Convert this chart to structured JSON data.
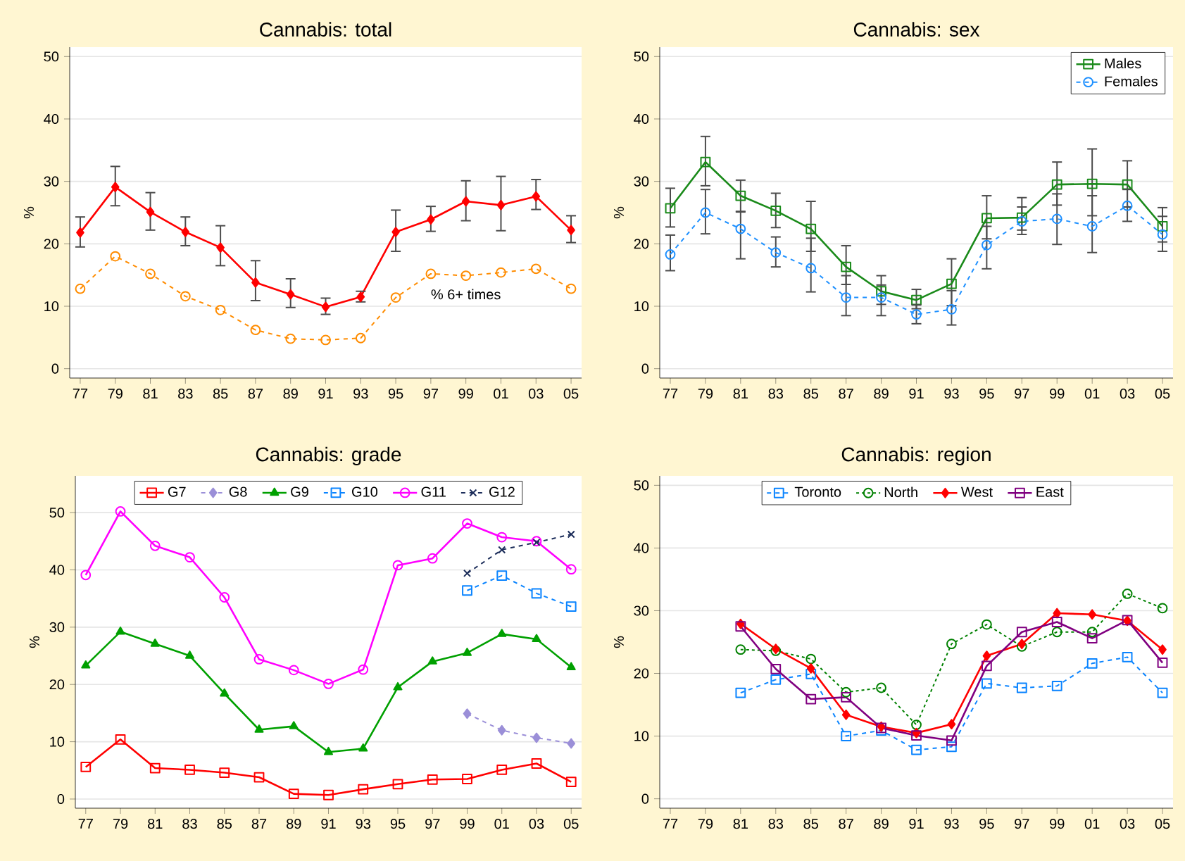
{
  "chart_data": [
    {
      "type": "line",
      "title": "Cannabis: total",
      "ylabel": "%",
      "categories": [
        "77",
        "79",
        "81",
        "83",
        "85",
        "87",
        "89",
        "91",
        "93",
        "95",
        "97",
        "99",
        "01",
        "03",
        "05"
      ],
      "ylim": [
        -1.5,
        51.5
      ],
      "yticks": [
        0,
        10,
        20,
        30,
        40,
        50
      ],
      "grid": "y",
      "legend": false,
      "series": [
        {
          "color": "#ff0000",
          "marker": "diamond",
          "line_style": "solid",
          "values": [
            21.8,
            29.1,
            25.1,
            21.9,
            19.4,
            13.8,
            11.9,
            9.9,
            11.5,
            21.9,
            23.9,
            26.8,
            26.2,
            27.6,
            22.2
          ],
          "errors": [
            [
              19.5,
              24.3
            ],
            [
              26.1,
              32.4
            ],
            [
              22.2,
              28.2
            ],
            [
              19.7,
              24.3
            ],
            [
              16.5,
              22.9
            ],
            [
              10.9,
              17.3
            ],
            [
              9.8,
              14.4
            ],
            [
              8.7,
              11.3
            ],
            [
              10.7,
              12.4
            ],
            [
              18.8,
              25.4
            ],
            [
              22.0,
              26.0
            ],
            [
              23.7,
              30.1
            ],
            [
              22.1,
              30.8
            ],
            [
              25.5,
              30.3
            ],
            [
              20.2,
              24.5
            ]
          ]
        },
        {
          "name": "% 6+ times",
          "color": "#ff8c00",
          "marker": "circle",
          "line_style": "dashed",
          "values": [
            12.8,
            18.0,
            15.2,
            11.6,
            9.4,
            6.2,
            4.8,
            4.6,
            4.9,
            11.4,
            15.2,
            14.9,
            15.4,
            16.0,
            12.8
          ]
        }
      ]
    },
    {
      "type": "line",
      "title": "Cannabis: sex",
      "ylabel": "%",
      "categories": [
        "77",
        "79",
        "81",
        "83",
        "85",
        "87",
        "89",
        "91",
        "93",
        "95",
        "97",
        "99",
        "01",
        "03",
        "05"
      ],
      "ylim": [
        -1.5,
        51.5
      ],
      "yticks": [
        0,
        10,
        20,
        30,
        40,
        50
      ],
      "grid": "y",
      "legend": "top right",
      "series": [
        {
          "name": "Males",
          "color": "#1a8a1a",
          "marker": "square",
          "line_style": "solid",
          "values": [
            25.7,
            33.1,
            27.7,
            25.3,
            22.4,
            16.3,
            12.4,
            11.0,
            13.6,
            24.1,
            24.2,
            29.5,
            29.6,
            29.5,
            22.8
          ],
          "errors": [
            [
              22.7,
              28.9
            ],
            [
              29.3,
              37.2
            ],
            [
              25.1,
              30.2
            ],
            [
              22.6,
              28.1
            ],
            [
              18.8,
              26.8
            ],
            [
              13.5,
              19.7
            ],
            [
              10.3,
              14.9
            ],
            [
              9.6,
              12.7
            ],
            [
              10.1,
              17.6
            ],
            [
              20.8,
              27.7
            ],
            [
              22.2,
              27.4
            ],
            [
              26.2,
              33.1
            ],
            [
              24.5,
              35.2
            ],
            [
              25.9,
              33.3
            ],
            [
              20.3,
              25.8
            ]
          ]
        },
        {
          "name": "Females",
          "color": "#1e90ff",
          "marker": "circle",
          "line_style": "dashed",
          "values": [
            18.3,
            25.0,
            22.4,
            18.6,
            16.1,
            11.4,
            11.4,
            8.7,
            9.5,
            19.8,
            23.6,
            24.0,
            22.8,
            26.1,
            21.5
          ],
          "errors": [
            [
              15.7,
              21.4
            ],
            [
              21.6,
              28.7
            ],
            [
              17.6,
              25.2
            ],
            [
              16.3,
              21.1
            ],
            [
              12.3,
              20.9
            ],
            [
              8.5,
              14.9
            ],
            [
              8.5,
              13.4
            ],
            [
              7.2,
              10.2
            ],
            [
              7.0,
              12.5
            ],
            [
              16.0,
              22.8
            ],
            [
              21.5,
              25.9
            ],
            [
              19.9,
              28.0
            ],
            [
              18.6,
              27.7
            ],
            [
              23.6,
              28.7
            ],
            [
              18.8,
              24.4
            ]
          ]
        }
      ]
    },
    {
      "type": "line",
      "title": "Cannabis: grade",
      "ylabel": "%",
      "categories": [
        "77",
        "79",
        "81",
        "83",
        "85",
        "87",
        "89",
        "91",
        "93",
        "95",
        "97",
        "99",
        "01",
        "03",
        "05"
      ],
      "ylim": [
        -1.6,
        56.4
      ],
      "yticks": [
        0,
        10,
        20,
        30,
        40,
        50
      ],
      "grid": "y",
      "legend": "top",
      "series": [
        {
          "name": "G7",
          "color": "#ff0000",
          "marker": "square",
          "line_style": "solid",
          "values": [
            5.6,
            10.4,
            5.4,
            5.1,
            4.6,
            3.8,
            0.9,
            0.7,
            1.7,
            2.6,
            3.4,
            3.5,
            5.1,
            6.2,
            3.0
          ]
        },
        {
          "name": "G8",
          "color": "#9b8fd8",
          "marker": "diamond",
          "line_style": "dashed",
          "values": [
            null,
            null,
            null,
            null,
            null,
            null,
            null,
            null,
            null,
            null,
            null,
            14.9,
            12.0,
            10.7,
            9.7
          ]
        },
        {
          "name": "G9",
          "color": "#00a000",
          "marker": "triangle",
          "line_style": "solid",
          "values": [
            23.3,
            29.2,
            27.1,
            25.0,
            18.4,
            12.1,
            12.7,
            8.2,
            8.8,
            19.5,
            24.0,
            25.5,
            28.8,
            27.9,
            23.0
          ]
        },
        {
          "name": "G10",
          "color": "#0a84ff",
          "marker": "square",
          "line_style": "dashed",
          "values": [
            null,
            null,
            null,
            null,
            null,
            null,
            null,
            null,
            null,
            null,
            null,
            36.4,
            39.0,
            35.9,
            33.6
          ]
        },
        {
          "name": "G11",
          "color": "#ff00ff",
          "marker": "circle",
          "line_style": "solid",
          "values": [
            39.1,
            50.2,
            44.2,
            42.2,
            35.2,
            24.4,
            22.5,
            20.1,
            22.6,
            40.8,
            42.0,
            48.1,
            45.7,
            45.0,
            40.1
          ]
        },
        {
          "name": "G12",
          "color": "#1c2d5a",
          "marker": "cross",
          "line_style": "dashed",
          "values": [
            null,
            null,
            null,
            null,
            null,
            null,
            null,
            null,
            null,
            null,
            null,
            39.4,
            43.5,
            44.8,
            46.2
          ]
        }
      ]
    },
    {
      "type": "line",
      "title": "Cannabis: region",
      "ylabel": "%",
      "categories": [
        "77",
        "79",
        "81",
        "83",
        "85",
        "87",
        "89",
        "91",
        "93",
        "95",
        "97",
        "99",
        "01",
        "03",
        "05"
      ],
      "ylim": [
        -1.5,
        51.5
      ],
      "yticks": [
        0,
        10,
        20,
        30,
        40,
        50
      ],
      "grid": "y",
      "legend": "top",
      "series": [
        {
          "name": "Toronto",
          "color": "#0a84ff",
          "marker": "square",
          "line_style": "dashed",
          "values": [
            null,
            null,
            16.9,
            19.0,
            19.9,
            10.0,
            10.9,
            7.8,
            8.3,
            18.4,
            17.7,
            18.0,
            21.6,
            22.6,
            16.9
          ]
        },
        {
          "name": "North",
          "color": "#008000",
          "marker": "circle",
          "line_style": "dotted",
          "values": [
            null,
            null,
            23.8,
            23.6,
            22.3,
            17.0,
            17.7,
            11.8,
            24.7,
            27.8,
            24.3,
            26.6,
            26.6,
            32.7,
            30.4
          ]
        },
        {
          "name": "West",
          "color": "#ff0000",
          "marker": "diamond",
          "line_style": "solid",
          "values": [
            null,
            null,
            27.9,
            23.9,
            20.8,
            13.4,
            11.5,
            10.5,
            11.9,
            22.8,
            24.7,
            29.6,
            29.4,
            28.4,
            23.8
          ]
        },
        {
          "name": "East",
          "color": "#800080",
          "marker": "square",
          "line_style": "solid",
          "values": [
            null,
            null,
            27.5,
            20.7,
            15.9,
            16.2,
            11.3,
            10.1,
            9.3,
            21.2,
            26.6,
            28.2,
            25.6,
            28.5,
            21.7
          ]
        }
      ]
    }
  ]
}
